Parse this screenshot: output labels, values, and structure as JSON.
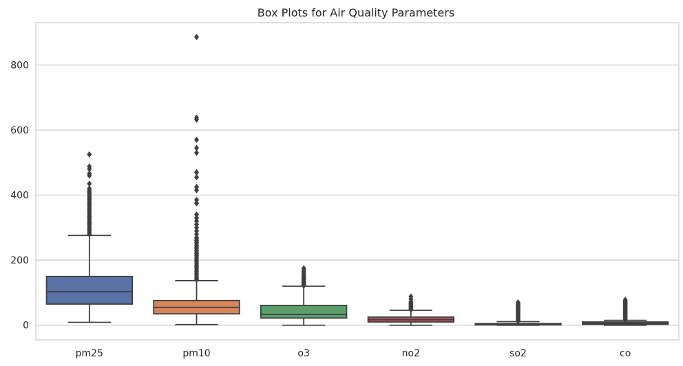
{
  "chart_data": {
    "type": "box",
    "title": "Box Plots for Air Quality Parameters",
    "xlabel": "",
    "ylabel": "",
    "ylim": [
      -45,
      930
    ],
    "yticks": [
      0,
      200,
      400,
      600,
      800
    ],
    "grid": "horizontal",
    "categories": [
      "pm25",
      "pm10",
      "o3",
      "no2",
      "so2",
      "co"
    ],
    "colors": [
      "#5a72a6",
      "#d6865a",
      "#5b9f6b",
      "#c1525a",
      "#8170ad",
      "#947564"
    ],
    "boxes": [
      {
        "name": "pm25",
        "whisker_low": 9,
        "q1": 65,
        "median": 103,
        "q3": 150,
        "whisker_high": 276,
        "outliers": [
          280,
          285,
          290,
          295,
          300,
          305,
          310,
          315,
          320,
          325,
          330,
          335,
          340,
          345,
          350,
          355,
          360,
          365,
          370,
          375,
          380,
          385,
          390,
          395,
          400,
          405,
          410,
          415,
          420,
          435,
          460,
          466,
          480,
          488,
          525
        ]
      },
      {
        "name": "pm10",
        "whisker_low": 2,
        "q1": 35,
        "median": 55,
        "q3": 76,
        "whisker_high": 137,
        "outliers": [
          140,
          145,
          150,
          155,
          160,
          165,
          170,
          175,
          180,
          185,
          190,
          195,
          200,
          205,
          210,
          215,
          220,
          225,
          230,
          235,
          240,
          245,
          250,
          255,
          260,
          265,
          270,
          280,
          290,
          300,
          310,
          320,
          330,
          340,
          375,
          385,
          415,
          425,
          455,
          470,
          530,
          545,
          570,
          632,
          638,
          886
        ]
      },
      {
        "name": "o3",
        "whisker_low": 0,
        "q1": 22,
        "median": 33,
        "q3": 61,
        "whisker_high": 120,
        "outliers": [
          122,
          125,
          128,
          131,
          134,
          137,
          140,
          143,
          146,
          150,
          155,
          160,
          165,
          170,
          175
        ]
      },
      {
        "name": "no2",
        "whisker_low": 0,
        "q1": 10,
        "median": 17,
        "q3": 25,
        "whisker_high": 46,
        "outliers": [
          48,
          51,
          54,
          57,
          60,
          63,
          66,
          69,
          72,
          80,
          88
        ]
      },
      {
        "name": "so2",
        "whisker_low": 0,
        "q1": 1,
        "median": 3,
        "q3": 5,
        "whisker_high": 11,
        "outliers": [
          13,
          16,
          19,
          22,
          25,
          28,
          31,
          34,
          37,
          40,
          43,
          46,
          49,
          52,
          55,
          58,
          61,
          64,
          67,
          70
        ]
      },
      {
        "name": "co",
        "whisker_low": 0,
        "q1": 3,
        "median": 6,
        "q3": 10,
        "whisker_high": 15,
        "outliers": [
          17,
          20,
          23,
          26,
          29,
          32,
          35,
          38,
          41,
          44,
          47,
          50,
          53,
          56,
          59,
          62,
          65,
          68,
          71,
          74,
          78
        ]
      }
    ]
  }
}
